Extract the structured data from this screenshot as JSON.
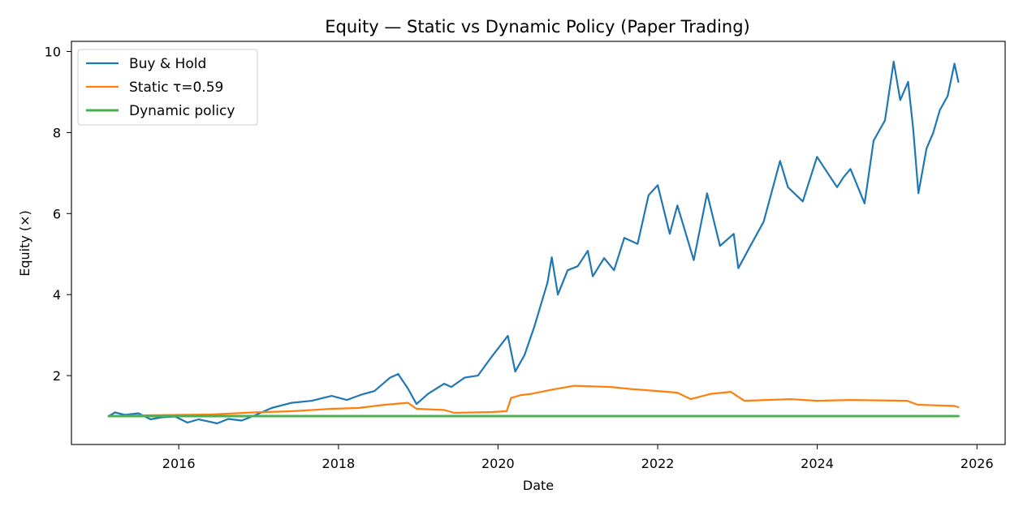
{
  "chart_data": {
    "type": "line",
    "title": "Equity — Static vs Dynamic Policy (Paper Trading)",
    "xlabel": "Date",
    "ylabel": "Equity (×)",
    "xlim": [
      "2014-08-28",
      "2026-05-10"
    ],
    "ylim": [
      0.3,
      10.25
    ],
    "xticks": [
      {
        "date": "2016-01-01",
        "label": "2016"
      },
      {
        "date": "2018-01-01",
        "label": "2018"
      },
      {
        "date": "2020-01-01",
        "label": "2020"
      },
      {
        "date": "2022-01-01",
        "label": "2022"
      },
      {
        "date": "2024-01-01",
        "label": "2024"
      },
      {
        "date": "2026-01-01",
        "label": "2026"
      }
    ],
    "yticks": [
      2,
      4,
      6,
      8,
      10
    ],
    "grid": false,
    "legend_position": "top-left",
    "series": [
      {
        "name": "Buy & Hold",
        "color": "#1f77b4",
        "points": [
          [
            "2015-02-15",
            1.0
          ],
          [
            "2015-03-15",
            1.09
          ],
          [
            "2015-05-01",
            1.03
          ],
          [
            "2015-07-01",
            1.07
          ],
          [
            "2015-08-25",
            0.92
          ],
          [
            "2015-10-15",
            0.97
          ],
          [
            "2015-12-15",
            0.99
          ],
          [
            "2016-02-10",
            0.84
          ],
          [
            "2016-04-01",
            0.92
          ],
          [
            "2016-06-25",
            0.82
          ],
          [
            "2016-08-15",
            0.93
          ],
          [
            "2016-10-15",
            0.89
          ],
          [
            "2016-12-15",
            1.02
          ],
          [
            "2017-03-01",
            1.2
          ],
          [
            "2017-06-01",
            1.33
          ],
          [
            "2017-09-01",
            1.38
          ],
          [
            "2017-12-01",
            1.5
          ],
          [
            "2018-02-08",
            1.4
          ],
          [
            "2018-04-15",
            1.53
          ],
          [
            "2018-06-15",
            1.62
          ],
          [
            "2018-08-25",
            1.95
          ],
          [
            "2018-10-01",
            2.04
          ],
          [
            "2018-11-15",
            1.68
          ],
          [
            "2018-12-24",
            1.3
          ],
          [
            "2019-02-15",
            1.55
          ],
          [
            "2019-04-30",
            1.8
          ],
          [
            "2019-06-01",
            1.72
          ],
          [
            "2019-08-01",
            1.95
          ],
          [
            "2019-10-01",
            2.0
          ],
          [
            "2019-12-01",
            2.45
          ],
          [
            "2020-02-15",
            2.98
          ],
          [
            "2020-03-20",
            2.1
          ],
          [
            "2020-05-01",
            2.5
          ],
          [
            "2020-06-15",
            3.2
          ],
          [
            "2020-08-15",
            4.3
          ],
          [
            "2020-09-03",
            4.92
          ],
          [
            "2020-10-01",
            4.0
          ],
          [
            "2020-11-15",
            4.6
          ],
          [
            "2020-12-31",
            4.7
          ],
          [
            "2021-02-15",
            5.08
          ],
          [
            "2021-03-10",
            4.45
          ],
          [
            "2021-05-01",
            4.9
          ],
          [
            "2021-06-15",
            4.6
          ],
          [
            "2021-08-01",
            5.4
          ],
          [
            "2021-10-01",
            5.25
          ],
          [
            "2021-11-20",
            6.45
          ],
          [
            "2022-01-01",
            6.7
          ],
          [
            "2022-02-25",
            5.5
          ],
          [
            "2022-04-01",
            6.2
          ],
          [
            "2022-06-15",
            4.85
          ],
          [
            "2022-08-15",
            6.5
          ],
          [
            "2022-10-13",
            5.2
          ],
          [
            "2022-12-15",
            5.5
          ],
          [
            "2023-01-05",
            4.65
          ],
          [
            "2023-03-01",
            5.2
          ],
          [
            "2023-05-01",
            5.8
          ],
          [
            "2023-07-15",
            7.3
          ],
          [
            "2023-08-20",
            6.65
          ],
          [
            "2023-10-27",
            6.3
          ],
          [
            "2023-12-31",
            7.4
          ],
          [
            "2024-04-01",
            6.65
          ],
          [
            "2024-05-01",
            6.9
          ],
          [
            "2024-06-01",
            7.1
          ],
          [
            "2024-08-05",
            6.25
          ],
          [
            "2024-09-15",
            7.8
          ],
          [
            "2024-11-06",
            8.3
          ],
          [
            "2024-12-16",
            9.75
          ],
          [
            "2025-01-15",
            8.8
          ],
          [
            "2025-02-20",
            9.25
          ],
          [
            "2025-03-15",
            8.1
          ],
          [
            "2025-04-08",
            6.5
          ],
          [
            "2025-05-15",
            7.6
          ],
          [
            "2025-06-15",
            8.0
          ],
          [
            "2025-07-15",
            8.55
          ],
          [
            "2025-08-20",
            8.9
          ],
          [
            "2025-09-20",
            9.7
          ],
          [
            "2025-10-08",
            9.25
          ]
        ]
      },
      {
        "name": "Static τ=0.59",
        "color": "#ff7f0e",
        "points": [
          [
            "2015-02-15",
            1.0
          ],
          [
            "2015-08-01",
            1.02
          ],
          [
            "2016-06-01",
            1.04
          ],
          [
            "2016-12-01",
            1.09
          ],
          [
            "2017-06-01",
            1.12
          ],
          [
            "2017-12-01",
            1.18
          ],
          [
            "2018-04-01",
            1.2
          ],
          [
            "2018-08-01",
            1.28
          ],
          [
            "2018-11-15",
            1.33
          ],
          [
            "2018-12-24",
            1.18
          ],
          [
            "2019-05-01",
            1.15
          ],
          [
            "2019-06-15",
            1.08
          ],
          [
            "2019-12-01",
            1.1
          ],
          [
            "2020-02-10",
            1.12
          ],
          [
            "2020-03-01",
            1.45
          ],
          [
            "2020-04-15",
            1.52
          ],
          [
            "2020-06-01",
            1.55
          ],
          [
            "2020-09-01",
            1.65
          ],
          [
            "2020-12-15",
            1.75
          ],
          [
            "2021-06-01",
            1.72
          ],
          [
            "2021-09-01",
            1.67
          ],
          [
            "2022-01-01",
            1.62
          ],
          [
            "2022-04-01",
            1.58
          ],
          [
            "2022-06-01",
            1.42
          ],
          [
            "2022-09-01",
            1.55
          ],
          [
            "2022-12-01",
            1.6
          ],
          [
            "2023-02-01",
            1.38
          ],
          [
            "2023-09-01",
            1.42
          ],
          [
            "2024-01-01",
            1.38
          ],
          [
            "2024-06-01",
            1.4
          ],
          [
            "2025-02-15",
            1.38
          ],
          [
            "2025-04-05",
            1.28
          ],
          [
            "2025-09-20",
            1.25
          ],
          [
            "2025-10-08",
            1.22
          ]
        ]
      },
      {
        "name": "Dynamic policy",
        "color": "#4caf50",
        "points": [
          [
            "2015-02-15",
            1.0
          ],
          [
            "2025-10-08",
            1.0
          ]
        ]
      }
    ]
  }
}
